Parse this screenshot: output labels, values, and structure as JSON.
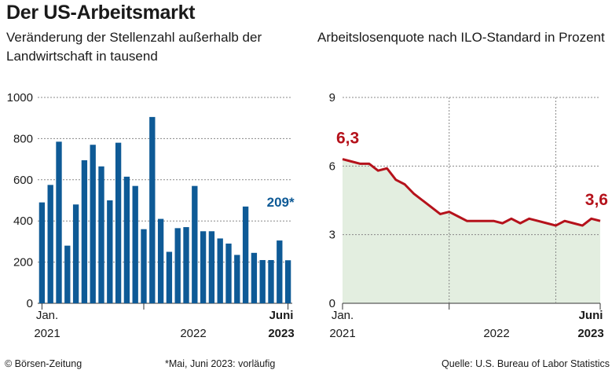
{
  "title": "Der US-Arbeitsmarkt",
  "footer": {
    "copyright": "© Börsen-Zeitung",
    "note": "*Mai, Juni 2023: vorläufig",
    "source": "Quelle: U.S. Bureau of Labor Statistics"
  },
  "colors": {
    "bar": "#0e5a96",
    "line": "#b5121b",
    "area": "#e3eee0",
    "grid": "#888888"
  },
  "chart_data": [
    {
      "type": "bar",
      "title": "Veränderung der Stellenzahl außerhalb der Landwirtschaft in tausend",
      "ylim": [
        0,
        1000
      ],
      "yticks": [
        "0",
        "200",
        "400",
        "600",
        "800",
        "1000"
      ],
      "x_tick_labels": [
        {
          "line1": "Jan.",
          "line2": "2021",
          "bold": false
        },
        {
          "line1": "",
          "line2": "2022",
          "bold": false
        },
        {
          "line1": "Juni",
          "line2": "2023",
          "bold": true
        }
      ],
      "values": [
        490,
        575,
        785,
        280,
        480,
        695,
        770,
        665,
        500,
        780,
        615,
        570,
        360,
        905,
        410,
        250,
        365,
        370,
        570,
        350,
        350,
        315,
        290,
        235,
        470,
        245,
        210,
        210,
        305,
        209
      ],
      "last_label": "209*",
      "grid": true
    },
    {
      "type": "area",
      "title": "Arbeitslosenquote nach ILO-Standard in Prozent",
      "ylim": [
        0,
        9
      ],
      "yticks": [
        "0",
        "3",
        "6",
        "9"
      ],
      "x_tick_labels": [
        {
          "line1": "Jan.",
          "line2": "2021",
          "bold": false
        },
        {
          "line1": "",
          "line2": "2022",
          "bold": false
        },
        {
          "line1": "Juni",
          "line2": "2023",
          "bold": true
        }
      ],
      "values": [
        6.3,
        6.2,
        6.1,
        6.1,
        5.8,
        5.9,
        5.4,
        5.2,
        4.8,
        4.5,
        4.2,
        3.9,
        4.0,
        3.8,
        3.6,
        3.6,
        3.6,
        3.6,
        3.5,
        3.7,
        3.5,
        3.7,
        3.6,
        3.5,
        3.4,
        3.6,
        3.5,
        3.4,
        3.7,
        3.6
      ],
      "first_label": "6,3",
      "last_label": "3,6",
      "grid": true
    }
  ]
}
